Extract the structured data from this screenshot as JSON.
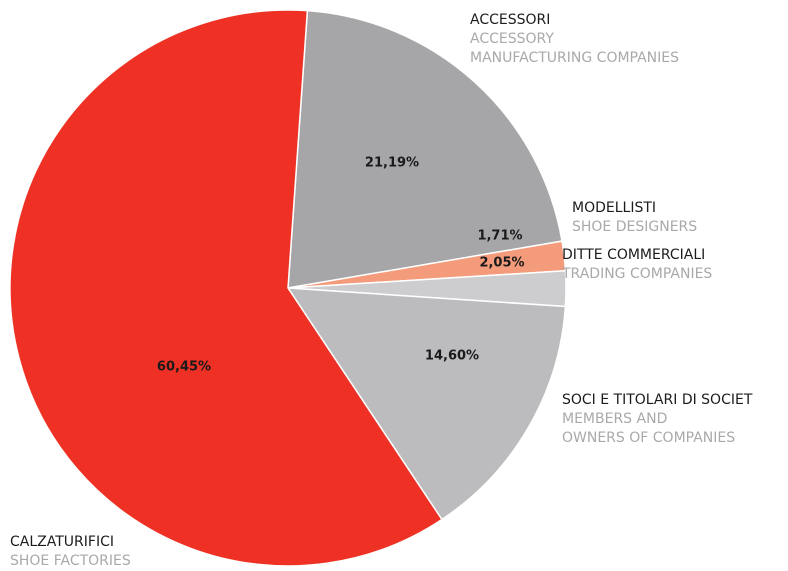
{
  "chart_data": {
    "type": "pie",
    "slices": [
      {
        "main": "ACCESSORI",
        "sub": [
          "ACCESSORY",
          "MANUFACTURING COMPANIES"
        ],
        "value": 21.19,
        "display": "21,19%",
        "color": "#a6a6a9"
      },
      {
        "main": "MODELLISTI",
        "sub": [
          "SHOE DESIGNERS"
        ],
        "value": 1.71,
        "display": "1,71%",
        "color": "#f39b7b"
      },
      {
        "main": "DITTE COMMERCIALI",
        "sub": [
          "TRADING COMPANIES"
        ],
        "value": 2.05,
        "display": "2,05%",
        "color": "#cdcdcf"
      },
      {
        "main": "SOCI E TITOLARI DI SOCIET",
        "sub": [
          "MEMBERS AND",
          "OWNERS OF COMPANIES"
        ],
        "value": 14.6,
        "display": "14,60%",
        "color": "#bcbcbf"
      },
      {
        "main": "CALZATURIFICI",
        "sub": [
          "SHOE FACTORIES"
        ],
        "value": 60.45,
        "display": "60,45%",
        "color": "#ee3124"
      }
    ]
  }
}
